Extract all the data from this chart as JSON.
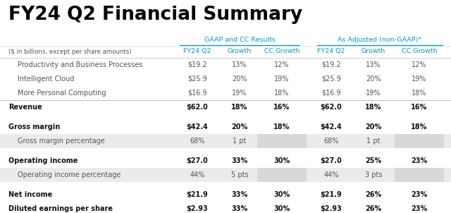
{
  "title": "FY24 Q2 Financial Summary",
  "subtitle_note": "($ in billions, except per share amounts)",
  "gaap_header": "GAAP and CC Results",
  "adj_header": "As Adjusted (non-GAAP)*",
  "col_headers": [
    "FY24 Q2",
    "Growth",
    "CC Growth",
    "FY24 Q2",
    "Growth",
    "CC Growth"
  ],
  "rows": [
    {
      "label": "Productivity and Business Processes",
      "bold": false,
      "values": [
        "$19.2",
        "13%",
        "12%",
        "$19.2",
        "13%",
        "12%"
      ],
      "bg": "white",
      "sep_above": false,
      "gap_above": false
    },
    {
      "label": "Intelligent Cloud",
      "bold": false,
      "values": [
        "$25.9",
        "20%",
        "19%",
        "$25.9",
        "20%",
        "19%"
      ],
      "bg": "white",
      "sep_above": false,
      "gap_above": false
    },
    {
      "label": "More Personal Computing",
      "bold": false,
      "values": [
        "$16.9",
        "19%",
        "18%",
        "$16.9",
        "19%",
        "18%"
      ],
      "bg": "white",
      "sep_above": false,
      "gap_above": false
    },
    {
      "label": "Revenue",
      "bold": true,
      "values": [
        "$62.0",
        "18%",
        "16%",
        "$62.0",
        "18%",
        "16%"
      ],
      "bg": "white",
      "sep_above": true,
      "gap_above": false
    },
    {
      "label": "Gross margin",
      "bold": true,
      "values": [
        "$42.4",
        "20%",
        "18%",
        "$42.4",
        "20%",
        "18%"
      ],
      "bg": "white",
      "sep_above": false,
      "gap_above": true
    },
    {
      "label": "Gross margin percentage",
      "bold": false,
      "values": [
        "68%",
        "1 pt",
        "",
        "68%",
        "1 pt",
        ""
      ],
      "bg": "light",
      "sep_above": false,
      "gap_above": false
    },
    {
      "label": "Operating income",
      "bold": true,
      "values": [
        "$27.0",
        "33%",
        "30%",
        "$27.0",
        "25%",
        "23%"
      ],
      "bg": "white",
      "sep_above": false,
      "gap_above": true
    },
    {
      "label": "Operating income percentage",
      "bold": false,
      "values": [
        "44%",
        "5 pts",
        "",
        "44%",
        "3 pts",
        ""
      ],
      "bg": "light",
      "sep_above": false,
      "gap_above": false
    },
    {
      "label": "Net income",
      "bold": true,
      "values": [
        "$21.9",
        "33%",
        "30%",
        "$21.9",
        "26%",
        "23%"
      ],
      "bg": "white",
      "sep_above": false,
      "gap_above": true
    },
    {
      "label": "Diluted earnings per share",
      "bold": true,
      "values": [
        "$2.93",
        "33%",
        "30%",
        "$2.93",
        "26%",
        "23%"
      ],
      "bg": "white",
      "sep_above": false,
      "gap_above": false
    }
  ],
  "colors": {
    "title": "#000000",
    "header_text": "#0099cc",
    "body_text": "#555555",
    "bold_text": "#111111",
    "bg_white": "#ffffff",
    "bg_light": "#ebebeb",
    "bg_shade": "#d8d8d8",
    "line_color": "#bbbbbb",
    "blue_line": "#0099cc"
  },
  "figsize": [
    6.4,
    3.02
  ],
  "dpi": 100
}
